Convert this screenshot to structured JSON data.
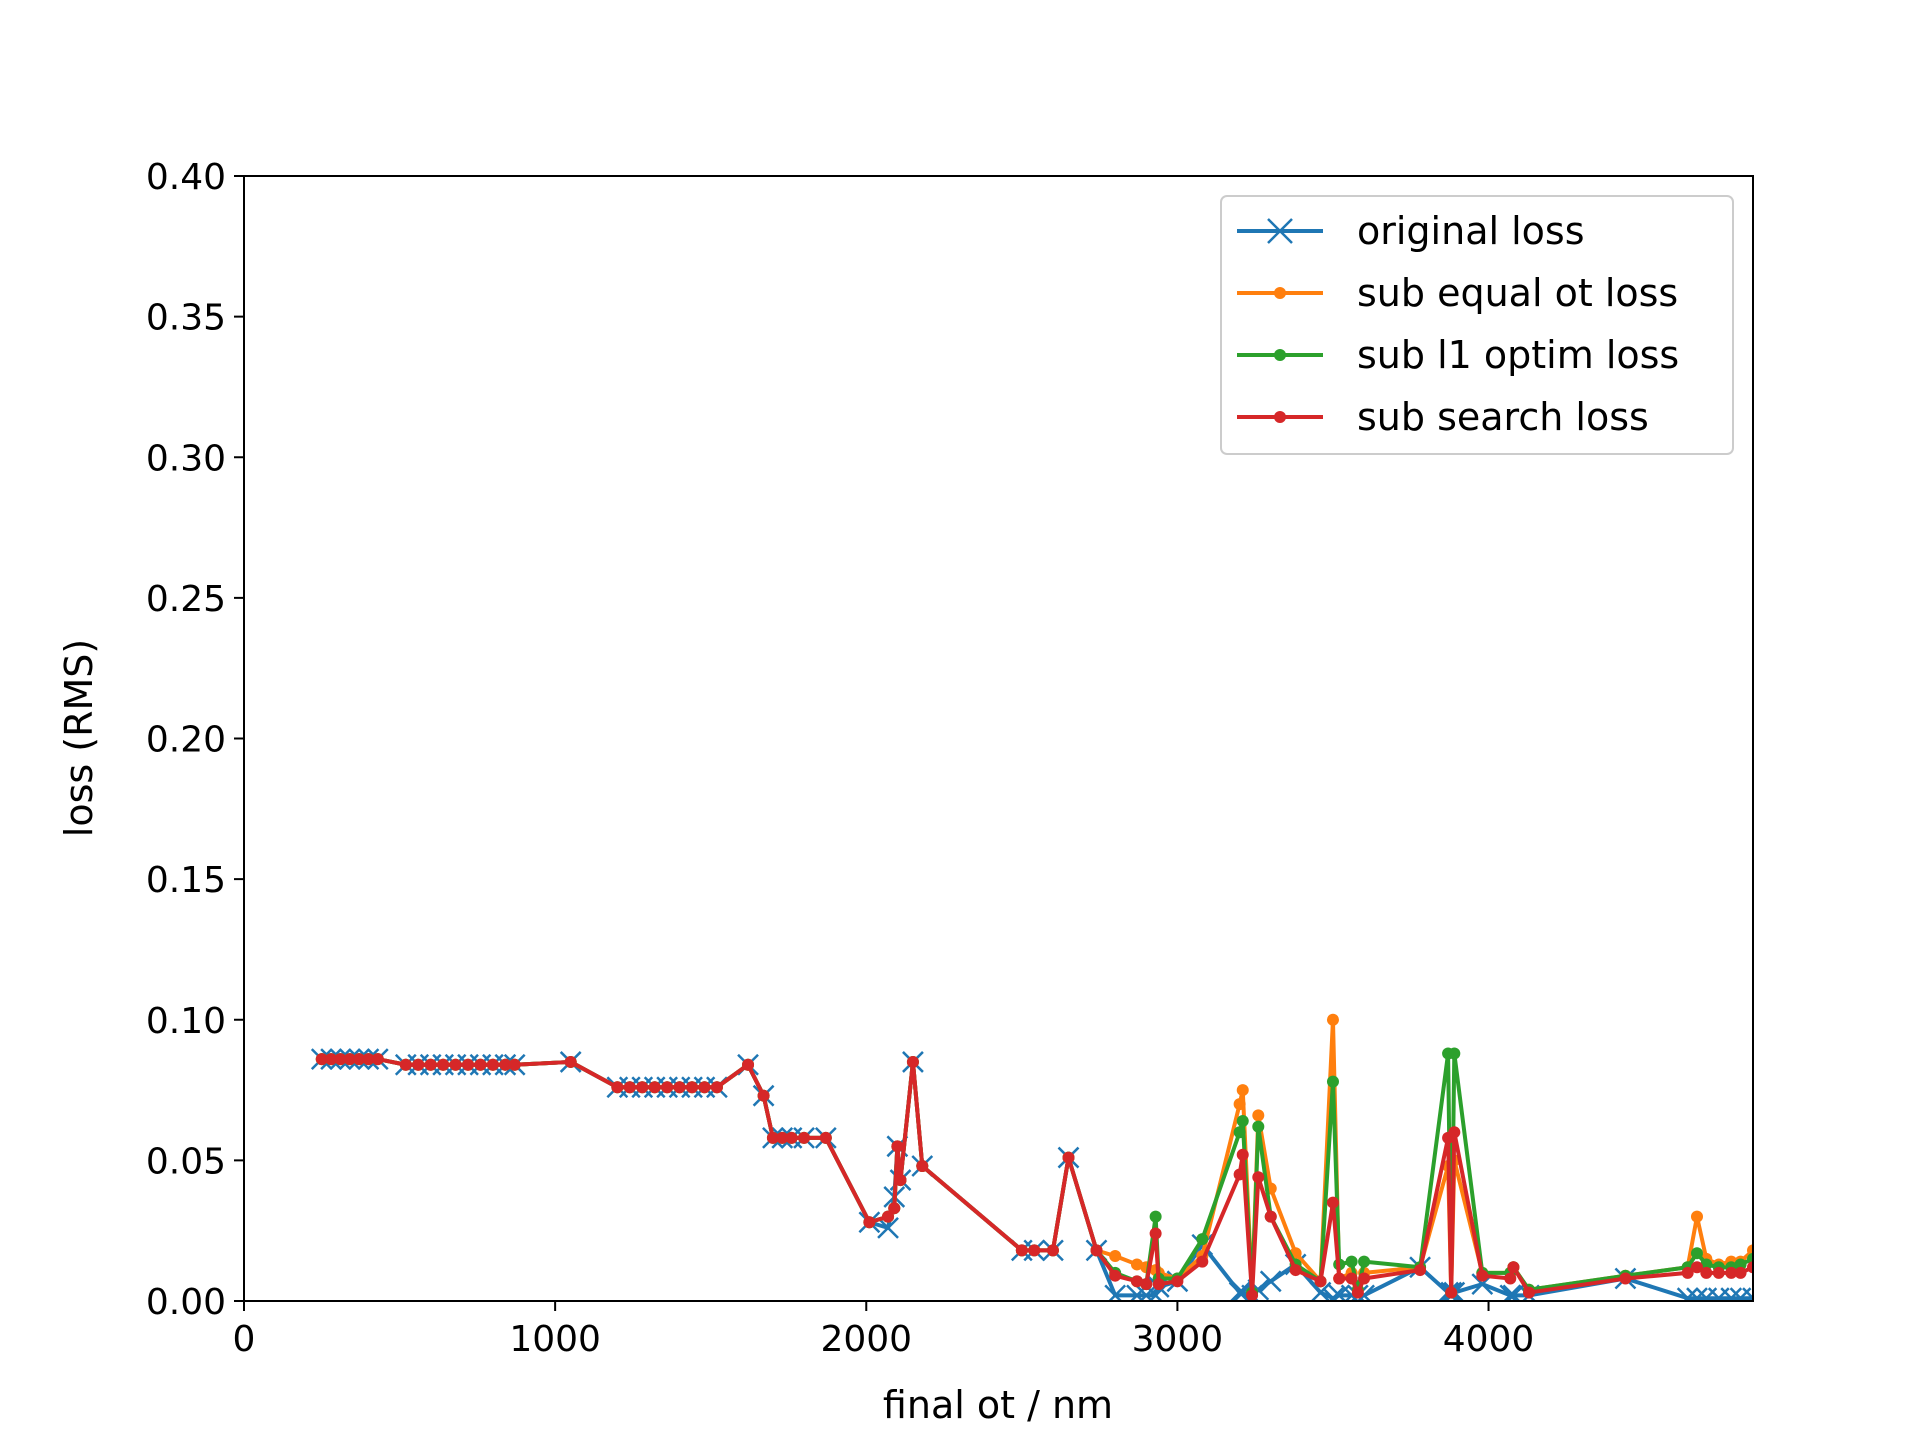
{
  "chart_data": {
    "type": "line",
    "xlabel": "final ot / nm",
    "ylabel": "loss (RMS)",
    "xlim": [
      0,
      4850
    ],
    "ylim": [
      0,
      0.4
    ],
    "xticks": [
      "0",
      "1000",
      "2000",
      "3000",
      "4000"
    ],
    "yticks": [
      "0.00",
      "0.05",
      "0.10",
      "0.15",
      "0.20",
      "0.25",
      "0.30",
      "0.35",
      "0.40"
    ],
    "grid": false,
    "legend_position": "top-right",
    "x": [
      250,
      280,
      310,
      340,
      370,
      400,
      430,
      520,
      560,
      600,
      640,
      680,
      720,
      760,
      800,
      840,
      870,
      1050,
      1200,
      1240,
      1280,
      1320,
      1360,
      1400,
      1440,
      1480,
      1520,
      1620,
      1670,
      1700,
      1730,
      1760,
      1800,
      1870,
      2010,
      2070,
      2090,
      2100,
      2110,
      2150,
      2180,
      2500,
      2540,
      2600,
      2650,
      2740,
      2800,
      2870,
      2900,
      2930,
      2940,
      3000,
      3080,
      3200,
      3210,
      3240,
      3260,
      3300,
      3380,
      3460,
      3500,
      3520,
      3560,
      3580,
      3600,
      3780,
      3870,
      3880,
      3890,
      3980,
      4070,
      4080,
      4130,
      4440,
      4640,
      4670,
      4700,
      4740,
      4780,
      4810,
      4850
    ],
    "series": [
      {
        "name": "original loss",
        "color": "#1f77b4",
        "marker": "x",
        "values": [
          0.086,
          0.086,
          0.086,
          0.086,
          0.086,
          0.086,
          0.086,
          0.084,
          0.084,
          0.084,
          0.084,
          0.084,
          0.084,
          0.084,
          0.084,
          0.084,
          0.084,
          0.085,
          0.076,
          0.076,
          0.076,
          0.076,
          0.076,
          0.076,
          0.076,
          0.076,
          0.076,
          0.084,
          0.073,
          0.058,
          0.058,
          0.058,
          0.058,
          0.058,
          0.028,
          0.026,
          0.037,
          0.055,
          0.043,
          0.085,
          0.048,
          0.018,
          0.018,
          0.018,
          0.051,
          0.018,
          0.002,
          0.002,
          0.002,
          0.002,
          0.005,
          0.007,
          0.02,
          0.003,
          0.003,
          0.002,
          0.004,
          0.007,
          0.013,
          0.003,
          0.001,
          0.002,
          0.002,
          0.002,
          0.002,
          0.012,
          0.003,
          0.003,
          0.003,
          0.006,
          0.002,
          0.002,
          0.002,
          0.008,
          0.001,
          0.001,
          0.001,
          0.001,
          0.001,
          0.001,
          0.001
        ]
      },
      {
        "name": "sub equal ot loss",
        "color": "#ff7f0e",
        "marker": "o",
        "values": [
          0.086,
          0.086,
          0.086,
          0.086,
          0.086,
          0.086,
          0.086,
          0.084,
          0.084,
          0.084,
          0.084,
          0.084,
          0.084,
          0.084,
          0.084,
          0.084,
          0.084,
          0.085,
          0.076,
          0.076,
          0.076,
          0.076,
          0.076,
          0.076,
          0.076,
          0.076,
          0.076,
          0.084,
          0.073,
          0.058,
          0.058,
          0.058,
          0.058,
          0.058,
          0.028,
          0.03,
          0.033,
          0.055,
          0.043,
          0.085,
          0.048,
          0.018,
          0.018,
          0.018,
          0.051,
          0.018,
          0.016,
          0.013,
          0.012,
          0.011,
          0.01,
          0.008,
          0.016,
          0.07,
          0.075,
          0.003,
          0.066,
          0.04,
          0.017,
          0.007,
          0.1,
          0.008,
          0.01,
          0.004,
          0.01,
          0.012,
          0.048,
          0.003,
          0.05,
          0.01,
          0.01,
          0.012,
          0.004,
          0.009,
          0.012,
          0.03,
          0.015,
          0.013,
          0.014,
          0.014,
          0.018
        ]
      },
      {
        "name": "sub l1 optim loss",
        "color": "#2ca02c",
        "marker": "o",
        "values": [
          0.086,
          0.086,
          0.086,
          0.086,
          0.086,
          0.086,
          0.086,
          0.084,
          0.084,
          0.084,
          0.084,
          0.084,
          0.084,
          0.084,
          0.084,
          0.084,
          0.084,
          0.085,
          0.076,
          0.076,
          0.076,
          0.076,
          0.076,
          0.076,
          0.076,
          0.076,
          0.076,
          0.084,
          0.073,
          0.058,
          0.058,
          0.058,
          0.058,
          0.058,
          0.028,
          0.03,
          0.033,
          0.055,
          0.043,
          0.085,
          0.048,
          0.018,
          0.018,
          0.018,
          0.051,
          0.018,
          0.01,
          0.007,
          0.006,
          0.03,
          0.008,
          0.008,
          0.022,
          0.06,
          0.064,
          0.003,
          0.062,
          0.03,
          0.013,
          0.007,
          0.078,
          0.013,
          0.014,
          0.004,
          0.014,
          0.012,
          0.088,
          0.003,
          0.088,
          0.01,
          0.01,
          0.012,
          0.004,
          0.009,
          0.012,
          0.017,
          0.013,
          0.012,
          0.012,
          0.013,
          0.015
        ]
      },
      {
        "name": "sub search loss",
        "color": "#d62728",
        "marker": "o",
        "values": [
          0.086,
          0.086,
          0.086,
          0.086,
          0.086,
          0.086,
          0.086,
          0.084,
          0.084,
          0.084,
          0.084,
          0.084,
          0.084,
          0.084,
          0.084,
          0.084,
          0.084,
          0.085,
          0.076,
          0.076,
          0.076,
          0.076,
          0.076,
          0.076,
          0.076,
          0.076,
          0.076,
          0.084,
          0.073,
          0.058,
          0.058,
          0.058,
          0.058,
          0.058,
          0.028,
          0.03,
          0.033,
          0.055,
          0.043,
          0.085,
          0.048,
          0.018,
          0.018,
          0.018,
          0.051,
          0.018,
          0.009,
          0.007,
          0.006,
          0.024,
          0.006,
          0.007,
          0.014,
          0.045,
          0.052,
          0.002,
          0.044,
          0.03,
          0.011,
          0.007,
          0.035,
          0.008,
          0.008,
          0.003,
          0.008,
          0.011,
          0.058,
          0.003,
          0.06,
          0.009,
          0.008,
          0.012,
          0.003,
          0.008,
          0.01,
          0.012,
          0.01,
          0.01,
          0.01,
          0.01,
          0.012
        ]
      }
    ]
  }
}
